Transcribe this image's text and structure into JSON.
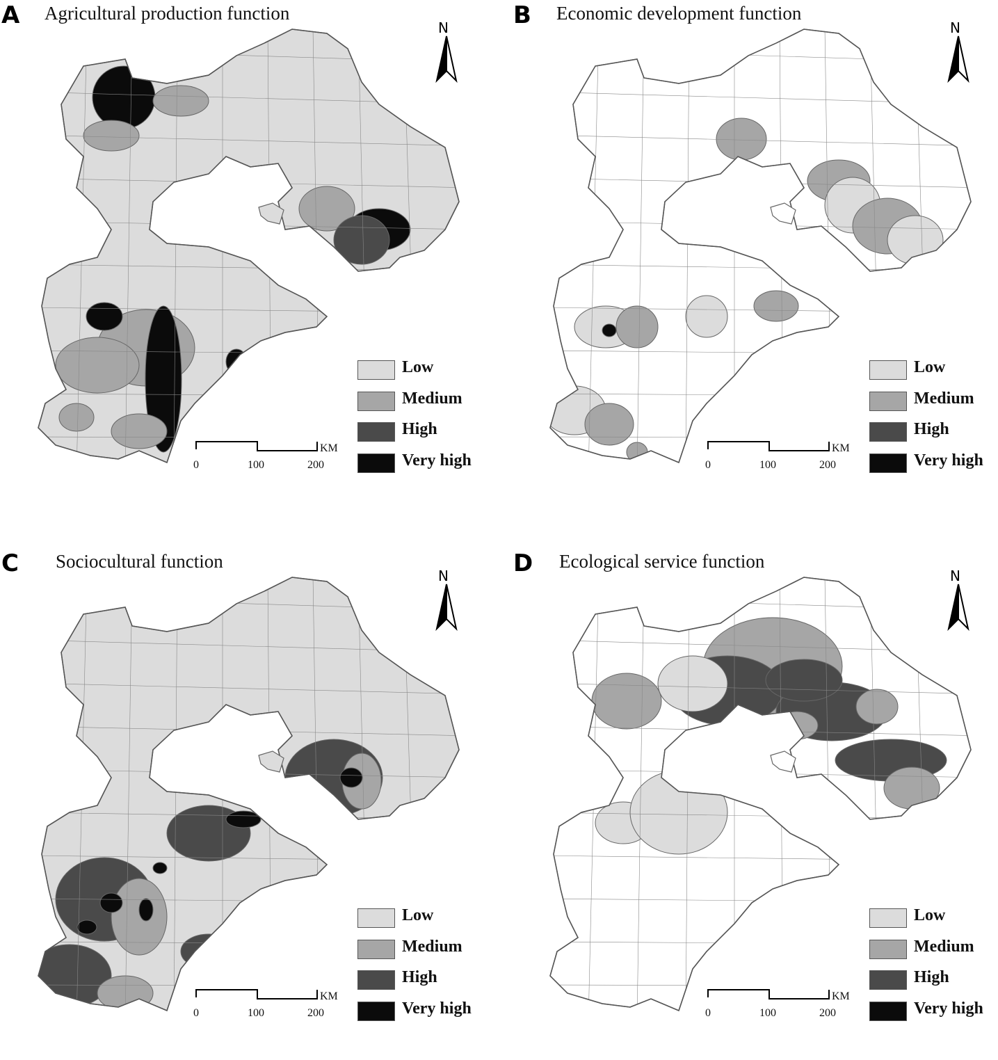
{
  "colors": {
    "low": "#dcdcdc",
    "medium": "#a6a6a6",
    "high": "#4a4a4a",
    "very_high": "#0b0b0b",
    "blank": "#ffffff",
    "border": "#666666"
  },
  "north_label": "N",
  "scale_bar": {
    "ticks": [
      "0",
      "100",
      "200"
    ],
    "unit": "KM"
  },
  "legend": [
    {
      "label": "Low",
      "color": "#dcdcdc"
    },
    {
      "label": "Medium",
      "color": "#a6a6a6"
    },
    {
      "label": "High",
      "color": "#4a4a4a"
    },
    {
      "label": "Very high",
      "color": "#0b0b0b"
    }
  ],
  "panels": [
    {
      "letter": "A",
      "title": "Agricultural production function",
      "background_class": "low",
      "highlight": [
        "medium",
        "high",
        "very_high"
      ]
    },
    {
      "letter": "B",
      "title": "Economic development function",
      "background_class": "blank",
      "highlight": [
        "low",
        "medium",
        "very_high"
      ]
    },
    {
      "letter": "C",
      "title": "Sociocultural function",
      "background_class": "low",
      "highlight": [
        "medium",
        "high",
        "very_high"
      ]
    },
    {
      "letter": "D",
      "title": "Ecological service function",
      "background_class": "blank",
      "highlight": [
        "low",
        "medium",
        "high"
      ]
    }
  ]
}
